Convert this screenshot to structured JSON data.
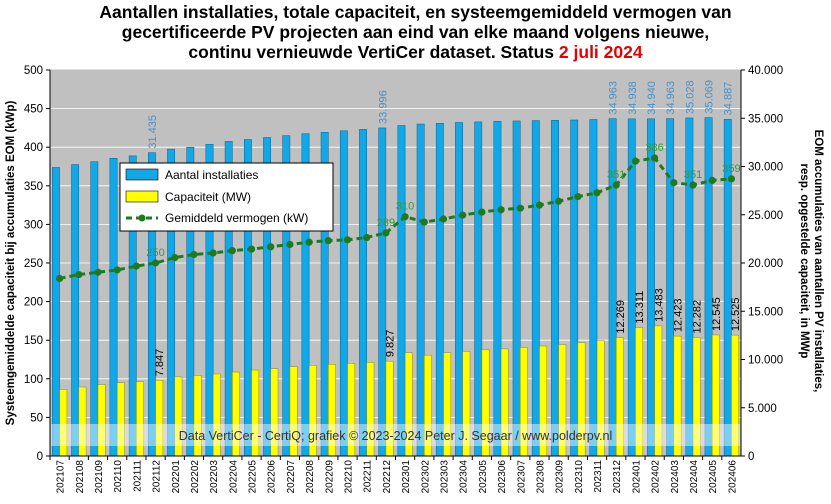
{
  "title": {
    "line1": "Aantallen installaties, totale capaciteit, en systeemgemiddeld vermogen van",
    "line2": "gecertificeerde PV projecten aan eind van elke maand volgens nieuwe,",
    "line3_prefix": "continu vernieuwde VertiCer dataset. Status",
    "date": "2 juli 2024"
  },
  "credit": "Data VertiCer - CertiQ; grafiek © 2023-2024 Peter J. Segaar / www.polderpv.nl",
  "colors": {
    "plot_bg": "#c0c0c0",
    "installaties": "#12a8e8",
    "capaciteit": "#ffff00",
    "vermogen": "#1f7a1f",
    "label_blue": "#4a90c8",
    "label_green": "#2e9e2e"
  },
  "chart_data": {
    "type": "bar",
    "categories": [
      "202107",
      "202108",
      "202109",
      "202110",
      "202111",
      "202112",
      "202201",
      "202202",
      "202203",
      "202204",
      "202205",
      "202206",
      "202207",
      "202208",
      "202209",
      "202210",
      "202211",
      "202212",
      "202301",
      "202302",
      "202303",
      "202304",
      "202305",
      "202306",
      "202307",
      "202308",
      "202309",
      "202310",
      "202311",
      "202312",
      "202401",
      "202402",
      "202403",
      "202404",
      "202405",
      "202406"
    ],
    "ylabel_left": "Systeemgemiddelde capaciteit bij accumulaties EOM (kWp)",
    "ylabel_right_line1": "EOM accumulaties van aantallen PV installaties,",
    "ylabel_right_line2": "resp. opgestelde capaciteit, in MWp",
    "ylim_left": [
      0,
      500
    ],
    "ylim_right": [
      0,
      40000
    ],
    "yticks_left": [
      "0",
      "50",
      "100",
      "150",
      "200",
      "250",
      "300",
      "350",
      "400",
      "450",
      "500"
    ],
    "yticks_right": [
      "0",
      "5.000",
      "10.000",
      "15.000",
      "20.000",
      "25.000",
      "30.000",
      "35.000",
      "40.000"
    ],
    "legend": {
      "installaties": "Aantal installaties",
      "capaciteit": "Capaciteit (MW)",
      "vermogen": "Gemiddeld vermogen (kW)"
    },
    "series": [
      {
        "name": "Aantal installaties",
        "axis": "right",
        "values": [
          29900,
          30200,
          30500,
          30850,
          31100,
          31435,
          31800,
          32000,
          32300,
          32600,
          32800,
          33000,
          33200,
          33400,
          33550,
          33700,
          33850,
          33996,
          34250,
          34400,
          34480,
          34560,
          34620,
          34680,
          34720,
          34760,
          34790,
          34820,
          34870,
          34963,
          34938,
          34940,
          34963,
          35028,
          35069,
          34887
        ]
      },
      {
        "name": "Capaciteit (MW)",
        "axis": "right",
        "values": [
          6900,
          7150,
          7400,
          7600,
          7700,
          7847,
          8200,
          8350,
          8500,
          8700,
          8900,
          9050,
          9250,
          9400,
          9500,
          9600,
          9700,
          9827,
          10700,
          10450,
          10700,
          10850,
          11000,
          11100,
          11250,
          11400,
          11550,
          11750,
          11950,
          12269,
          13311,
          13483,
          12423,
          12282,
          12545,
          12525
        ]
      },
      {
        "name": "Gemiddeld vermogen (kW)",
        "axis": "left",
        "values": [
          230,
          235,
          238,
          241,
          246,
          250,
          257,
          261,
          263,
          266,
          268,
          271,
          274,
          277,
          279,
          280,
          283,
          289,
          310,
          303,
          307,
          312,
          316,
          319,
          321,
          325,
          330,
          336,
          341,
          351,
          382,
          386,
          354,
          351,
          357,
          359
        ]
      }
    ],
    "value_labels": {
      "installaties": [
        {
          "index": 5,
          "text": "31.435"
        },
        {
          "index": 17,
          "text": "33.996"
        },
        {
          "index": 29,
          "text": "34.963"
        },
        {
          "index": 30,
          "text": "34.938"
        },
        {
          "index": 31,
          "text": "34.940"
        },
        {
          "index": 32,
          "text": "34.963"
        },
        {
          "index": 33,
          "text": "35.028"
        },
        {
          "index": 34,
          "text": "35.069"
        },
        {
          "index": 35,
          "text": "34.887"
        }
      ],
      "capaciteit": [
        {
          "index": 5,
          "text": "7.847"
        },
        {
          "index": 17,
          "text": "9.827"
        },
        {
          "index": 29,
          "text": "12.269"
        },
        {
          "index": 30,
          "text": "13.311"
        },
        {
          "index": 31,
          "text": "13.483"
        },
        {
          "index": 32,
          "text": "12.423"
        },
        {
          "index": 33,
          "text": "12.282"
        },
        {
          "index": 34,
          "text": "12.545"
        },
        {
          "index": 35,
          "text": "12.525"
        }
      ],
      "vermogen": [
        {
          "index": 5,
          "text": "250"
        },
        {
          "index": 17,
          "text": "289"
        },
        {
          "index": 18,
          "text": "310"
        },
        {
          "index": 29,
          "text": "351"
        },
        {
          "index": 31,
          "text": "386"
        },
        {
          "index": 33,
          "text": "351"
        },
        {
          "index": 35,
          "text": "359"
        }
      ]
    }
  }
}
